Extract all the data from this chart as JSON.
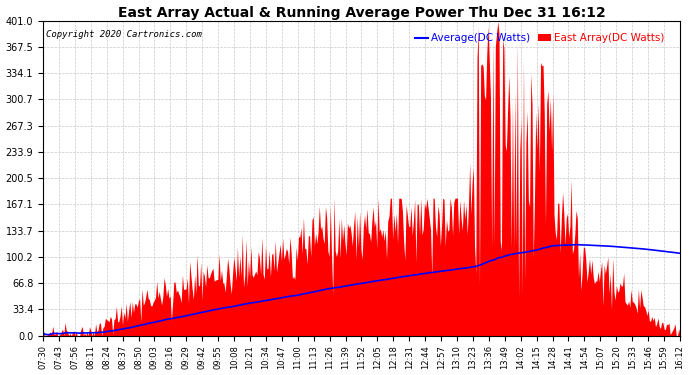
{
  "title": "East Array Actual & Running Average Power Thu Dec 31 16:12",
  "copyright": "Copyright 2020 Cartronics.com",
  "legend_avg": "Average(DC Watts)",
  "legend_east": "East Array(DC Watts)",
  "ylim": [
    0.0,
    401.0
  ],
  "yticks": [
    0.0,
    33.4,
    66.8,
    100.2,
    133.7,
    167.1,
    200.5,
    233.9,
    267.3,
    300.7,
    334.1,
    367.5,
    401.0
  ],
  "xtick_labels": [
    "07:30",
    "07:43",
    "07:56",
    "08:11",
    "08:24",
    "08:37",
    "08:50",
    "09:03",
    "09:16",
    "09:29",
    "09:42",
    "09:55",
    "10:08",
    "10:21",
    "10:34",
    "10:47",
    "11:00",
    "11:13",
    "11:26",
    "11:39",
    "11:52",
    "12:05",
    "12:18",
    "12:31",
    "12:44",
    "12:57",
    "13:10",
    "13:23",
    "13:36",
    "13:49",
    "14:02",
    "14:15",
    "14:28",
    "14:41",
    "14:54",
    "15:07",
    "15:20",
    "15:33",
    "15:46",
    "15:59",
    "16:12"
  ],
  "background_color": "#ffffff",
  "grid_color": "#bbbbbb",
  "area_color": "#ff0000",
  "avg_line_color": "#0000ff",
  "title_color": "#000000",
  "copyright_color": "#000000",
  "legend_avg_color": "#0000ff",
  "legend_east_color": "#ff0000"
}
